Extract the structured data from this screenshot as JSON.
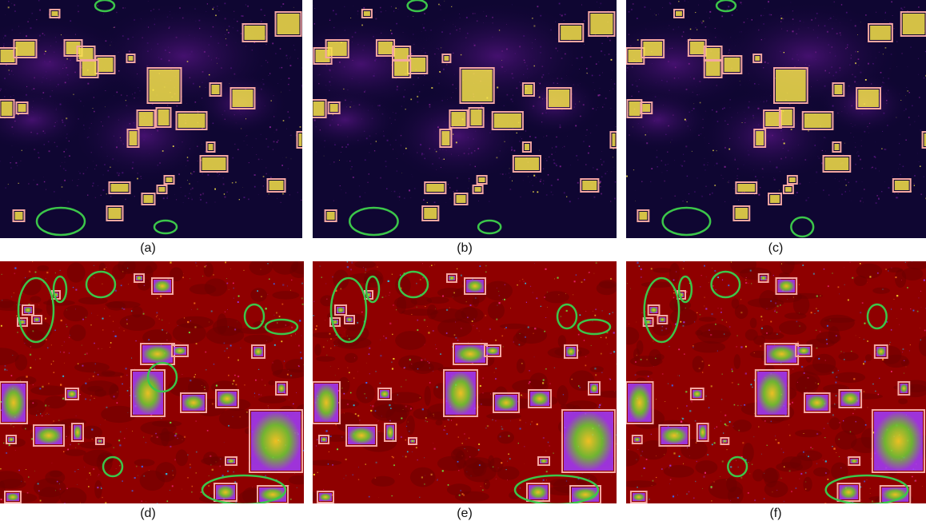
{
  "figure": {
    "panels": [
      {
        "caption": "(a)",
        "style": "plasma-heatmap"
      },
      {
        "caption": "(b)",
        "style": "plasma-heatmap"
      },
      {
        "caption": "(c)",
        "style": "plasma-heatmap"
      },
      {
        "caption": "(d)",
        "style": "jet-on-red-heatmap"
      },
      {
        "caption": "(e)",
        "style": "jet-on-red-heatmap"
      },
      {
        "caption": "(f)",
        "style": "jet-on-red-heatmap"
      }
    ],
    "colors": {
      "box": "#f4a7a2",
      "ellipse": "#3cc64a",
      "plasma_bg": "#0f0632",
      "plasma_glow": "#4a1275",
      "plasma_hot": "#f7e34a",
      "red_bg": "#8f0000",
      "red_dark": "#6a0000"
    }
  }
}
